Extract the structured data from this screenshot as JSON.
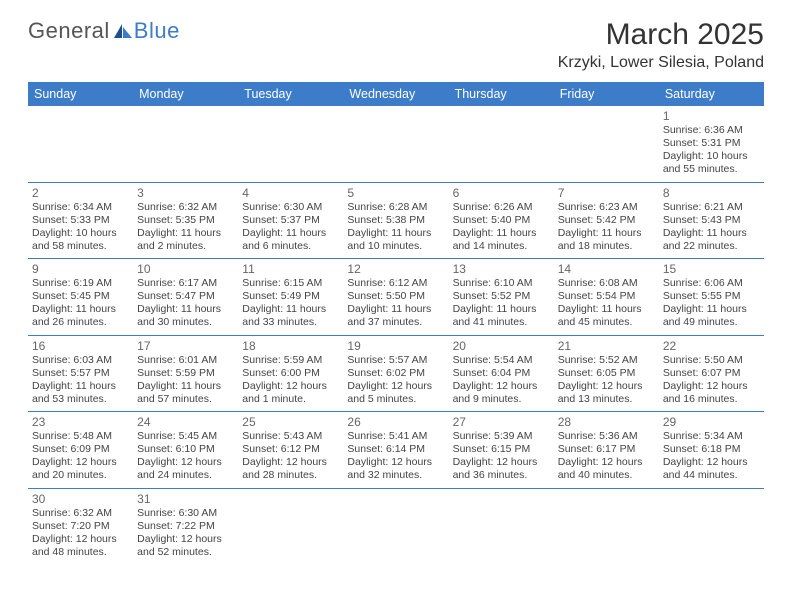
{
  "brand": {
    "part1": "General",
    "part2": "Blue"
  },
  "title": {
    "month": "March 2025",
    "location": "Krzyki, Lower Silesia, Poland"
  },
  "colors": {
    "header_bg": "#3d7cc9",
    "header_fg": "#ffffff",
    "border": "#3d7cc9",
    "text": "#444444"
  },
  "day_headers": [
    "Sunday",
    "Monday",
    "Tuesday",
    "Wednesday",
    "Thursday",
    "Friday",
    "Saturday"
  ],
  "weeks": [
    [
      null,
      null,
      null,
      null,
      null,
      null,
      {
        "n": "1",
        "sr": "Sunrise: 6:36 AM",
        "ss": "Sunset: 5:31 PM",
        "d1": "Daylight: 10 hours",
        "d2": "and 55 minutes."
      }
    ],
    [
      {
        "n": "2",
        "sr": "Sunrise: 6:34 AM",
        "ss": "Sunset: 5:33 PM",
        "d1": "Daylight: 10 hours",
        "d2": "and 58 minutes."
      },
      {
        "n": "3",
        "sr": "Sunrise: 6:32 AM",
        "ss": "Sunset: 5:35 PM",
        "d1": "Daylight: 11 hours",
        "d2": "and 2 minutes."
      },
      {
        "n": "4",
        "sr": "Sunrise: 6:30 AM",
        "ss": "Sunset: 5:37 PM",
        "d1": "Daylight: 11 hours",
        "d2": "and 6 minutes."
      },
      {
        "n": "5",
        "sr": "Sunrise: 6:28 AM",
        "ss": "Sunset: 5:38 PM",
        "d1": "Daylight: 11 hours",
        "d2": "and 10 minutes."
      },
      {
        "n": "6",
        "sr": "Sunrise: 6:26 AM",
        "ss": "Sunset: 5:40 PM",
        "d1": "Daylight: 11 hours",
        "d2": "and 14 minutes."
      },
      {
        "n": "7",
        "sr": "Sunrise: 6:23 AM",
        "ss": "Sunset: 5:42 PM",
        "d1": "Daylight: 11 hours",
        "d2": "and 18 minutes."
      },
      {
        "n": "8",
        "sr": "Sunrise: 6:21 AM",
        "ss": "Sunset: 5:43 PM",
        "d1": "Daylight: 11 hours",
        "d2": "and 22 minutes."
      }
    ],
    [
      {
        "n": "9",
        "sr": "Sunrise: 6:19 AM",
        "ss": "Sunset: 5:45 PM",
        "d1": "Daylight: 11 hours",
        "d2": "and 26 minutes."
      },
      {
        "n": "10",
        "sr": "Sunrise: 6:17 AM",
        "ss": "Sunset: 5:47 PM",
        "d1": "Daylight: 11 hours",
        "d2": "and 30 minutes."
      },
      {
        "n": "11",
        "sr": "Sunrise: 6:15 AM",
        "ss": "Sunset: 5:49 PM",
        "d1": "Daylight: 11 hours",
        "d2": "and 33 minutes."
      },
      {
        "n": "12",
        "sr": "Sunrise: 6:12 AM",
        "ss": "Sunset: 5:50 PM",
        "d1": "Daylight: 11 hours",
        "d2": "and 37 minutes."
      },
      {
        "n": "13",
        "sr": "Sunrise: 6:10 AM",
        "ss": "Sunset: 5:52 PM",
        "d1": "Daylight: 11 hours",
        "d2": "and 41 minutes."
      },
      {
        "n": "14",
        "sr": "Sunrise: 6:08 AM",
        "ss": "Sunset: 5:54 PM",
        "d1": "Daylight: 11 hours",
        "d2": "and 45 minutes."
      },
      {
        "n": "15",
        "sr": "Sunrise: 6:06 AM",
        "ss": "Sunset: 5:55 PM",
        "d1": "Daylight: 11 hours",
        "d2": "and 49 minutes."
      }
    ],
    [
      {
        "n": "16",
        "sr": "Sunrise: 6:03 AM",
        "ss": "Sunset: 5:57 PM",
        "d1": "Daylight: 11 hours",
        "d2": "and 53 minutes."
      },
      {
        "n": "17",
        "sr": "Sunrise: 6:01 AM",
        "ss": "Sunset: 5:59 PM",
        "d1": "Daylight: 11 hours",
        "d2": "and 57 minutes."
      },
      {
        "n": "18",
        "sr": "Sunrise: 5:59 AM",
        "ss": "Sunset: 6:00 PM",
        "d1": "Daylight: 12 hours",
        "d2": "and 1 minute."
      },
      {
        "n": "19",
        "sr": "Sunrise: 5:57 AM",
        "ss": "Sunset: 6:02 PM",
        "d1": "Daylight: 12 hours",
        "d2": "and 5 minutes."
      },
      {
        "n": "20",
        "sr": "Sunrise: 5:54 AM",
        "ss": "Sunset: 6:04 PM",
        "d1": "Daylight: 12 hours",
        "d2": "and 9 minutes."
      },
      {
        "n": "21",
        "sr": "Sunrise: 5:52 AM",
        "ss": "Sunset: 6:05 PM",
        "d1": "Daylight: 12 hours",
        "d2": "and 13 minutes."
      },
      {
        "n": "22",
        "sr": "Sunrise: 5:50 AM",
        "ss": "Sunset: 6:07 PM",
        "d1": "Daylight: 12 hours",
        "d2": "and 16 minutes."
      }
    ],
    [
      {
        "n": "23",
        "sr": "Sunrise: 5:48 AM",
        "ss": "Sunset: 6:09 PM",
        "d1": "Daylight: 12 hours",
        "d2": "and 20 minutes."
      },
      {
        "n": "24",
        "sr": "Sunrise: 5:45 AM",
        "ss": "Sunset: 6:10 PM",
        "d1": "Daylight: 12 hours",
        "d2": "and 24 minutes."
      },
      {
        "n": "25",
        "sr": "Sunrise: 5:43 AM",
        "ss": "Sunset: 6:12 PM",
        "d1": "Daylight: 12 hours",
        "d2": "and 28 minutes."
      },
      {
        "n": "26",
        "sr": "Sunrise: 5:41 AM",
        "ss": "Sunset: 6:14 PM",
        "d1": "Daylight: 12 hours",
        "d2": "and 32 minutes."
      },
      {
        "n": "27",
        "sr": "Sunrise: 5:39 AM",
        "ss": "Sunset: 6:15 PM",
        "d1": "Daylight: 12 hours",
        "d2": "and 36 minutes."
      },
      {
        "n": "28",
        "sr": "Sunrise: 5:36 AM",
        "ss": "Sunset: 6:17 PM",
        "d1": "Daylight: 12 hours",
        "d2": "and 40 minutes."
      },
      {
        "n": "29",
        "sr": "Sunrise: 5:34 AM",
        "ss": "Sunset: 6:18 PM",
        "d1": "Daylight: 12 hours",
        "d2": "and 44 minutes."
      }
    ],
    [
      {
        "n": "30",
        "sr": "Sunrise: 6:32 AM",
        "ss": "Sunset: 7:20 PM",
        "d1": "Daylight: 12 hours",
        "d2": "and 48 minutes."
      },
      {
        "n": "31",
        "sr": "Sunrise: 6:30 AM",
        "ss": "Sunset: 7:22 PM",
        "d1": "Daylight: 12 hours",
        "d2": "and 52 minutes."
      },
      null,
      null,
      null,
      null,
      null
    ]
  ]
}
